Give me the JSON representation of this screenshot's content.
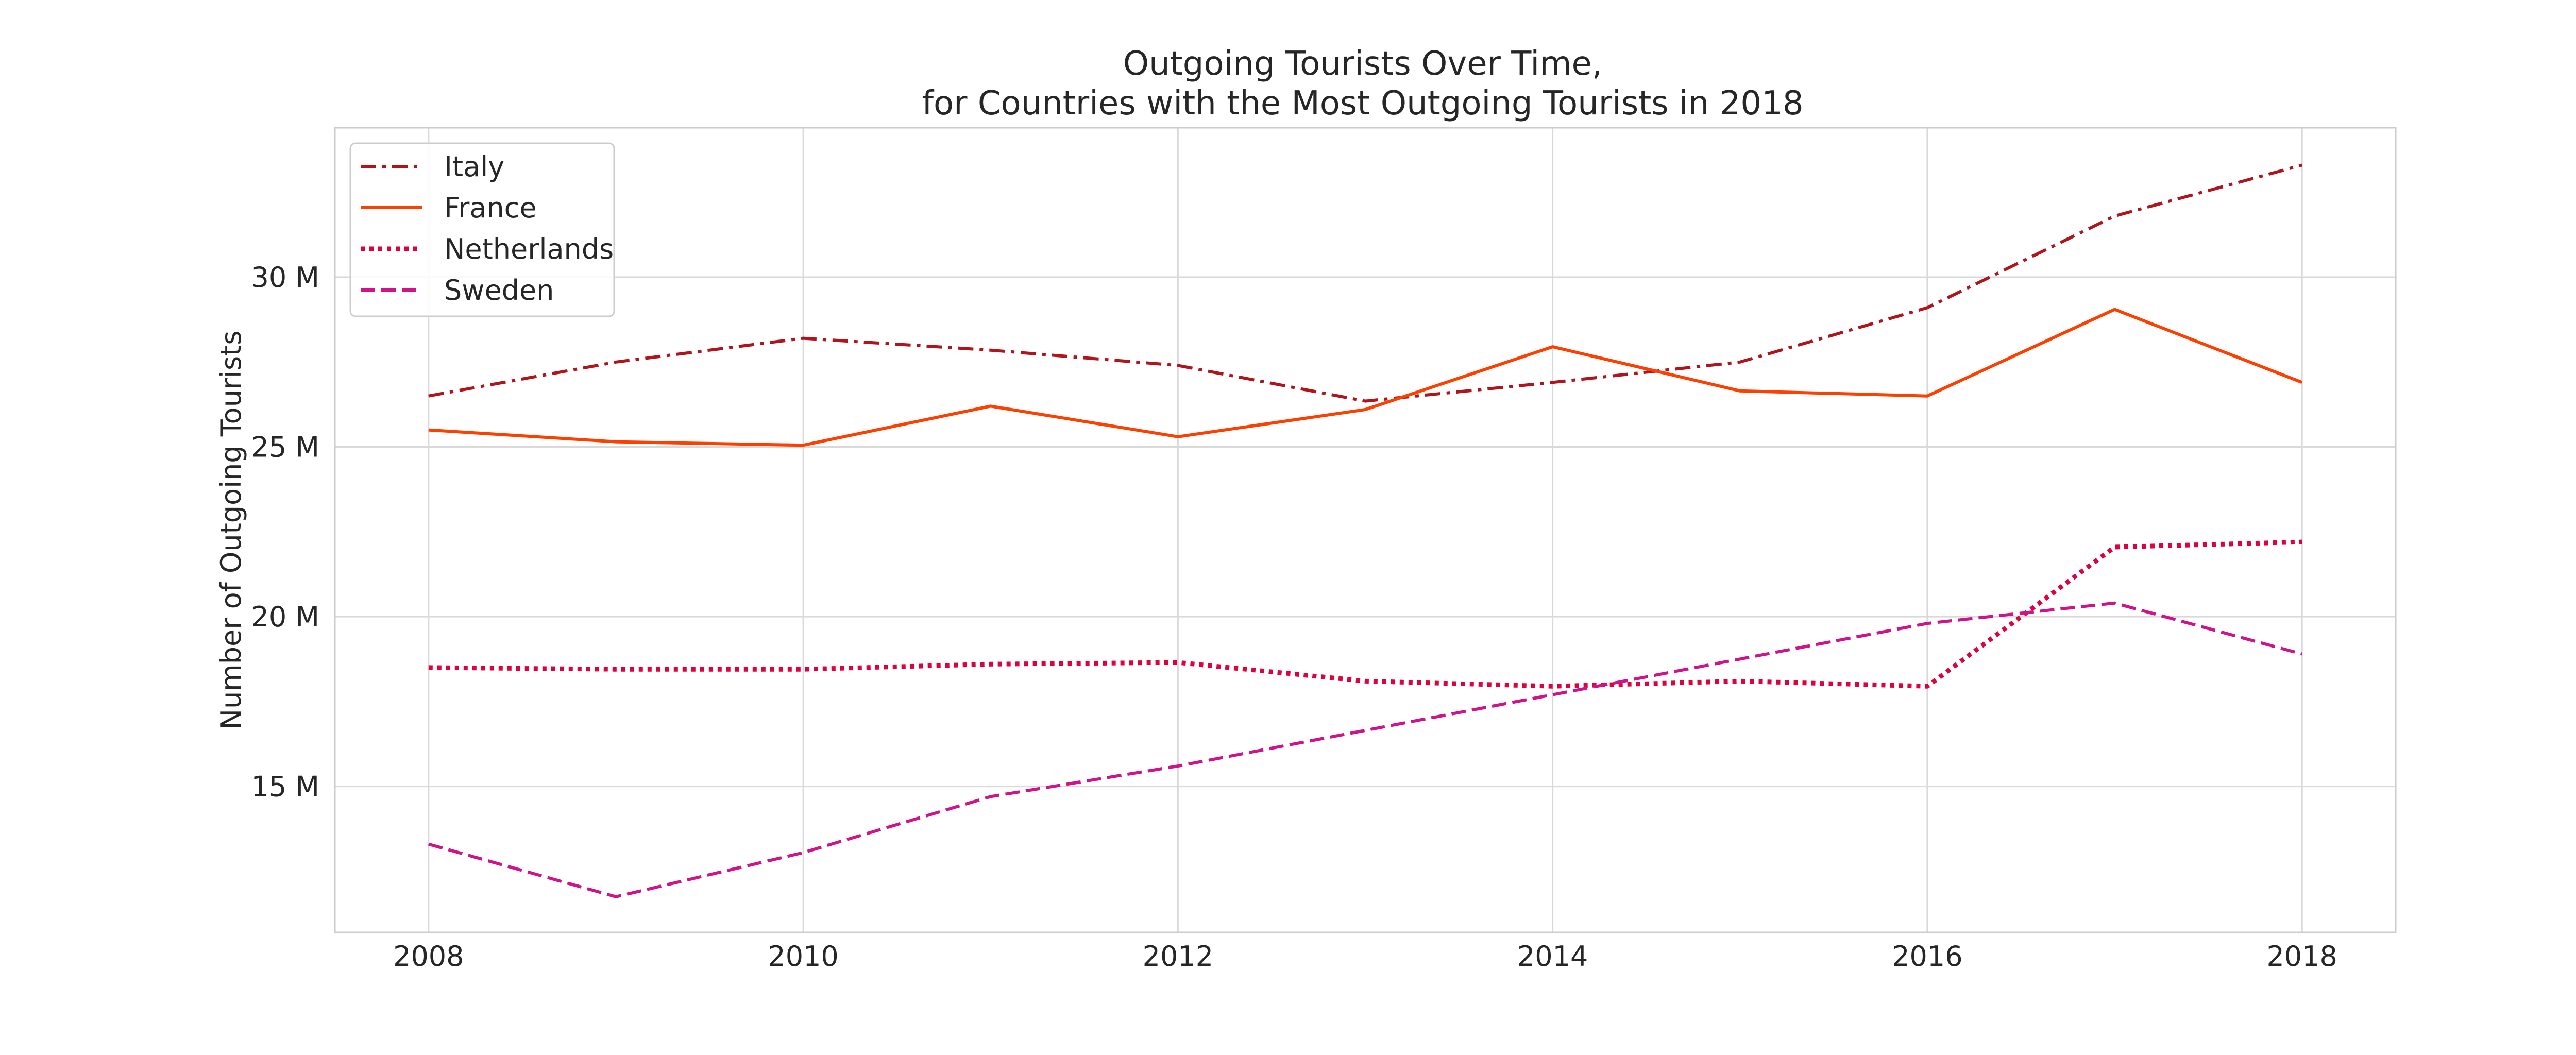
{
  "chart_data": {
    "type": "line",
    "title_lines": [
      "Outgoing Tourists Over Time,",
      "for Countries with the Most Outgoing Tourists in 2018"
    ],
    "xlabel": "",
    "ylabel": "Number of Outgoing Tourists",
    "x": [
      2008,
      2009,
      2010,
      2011,
      2012,
      2013,
      2014,
      2015,
      2016,
      2017,
      2018
    ],
    "xticks": [
      2008,
      2010,
      2012,
      2014,
      2016,
      2018
    ],
    "xtick_labels": [
      "2008",
      "2010",
      "2012",
      "2014",
      "2016",
      "2018"
    ],
    "xlim": [
      2007.5,
      2018.5
    ],
    "yticks": [
      15000000,
      20000000,
      25000000,
      30000000
    ],
    "ytick_labels": [
      "15 M",
      "20 M",
      "25 M",
      "30 M"
    ],
    "ylim": [
      10700000,
      34400000
    ],
    "grid": true,
    "legend_position": "upper left",
    "series": [
      {
        "name": "Italy",
        "color": "#b2141c",
        "style": "dashdot",
        "values": [
          26500000,
          27500000,
          28200000,
          27850000,
          27400000,
          26350000,
          26900000,
          27500000,
          29100000,
          31800000,
          33300000
        ]
      },
      {
        "name": "France",
        "color": "#ff3f00",
        "style": "solid",
        "values": [
          25500000,
          25150000,
          25050000,
          26200000,
          25300000,
          26100000,
          27950000,
          26650000,
          26500000,
          29050000,
          26900000
        ]
      },
      {
        "name": "Netherlands",
        "color": "#e0003c",
        "style": "dotted",
        "values": [
          18500000,
          18450000,
          18450000,
          18600000,
          18650000,
          18100000,
          17950000,
          18100000,
          17950000,
          22050000,
          22200000
        ]
      },
      {
        "name": "Sweden",
        "color": "#d0128b",
        "style": "dashed",
        "values": [
          13300000,
          11750000,
          13050000,
          14700000,
          15600000,
          16650000,
          17700000,
          18750000,
          19800000,
          20400000,
          18900000
        ]
      }
    ]
  }
}
